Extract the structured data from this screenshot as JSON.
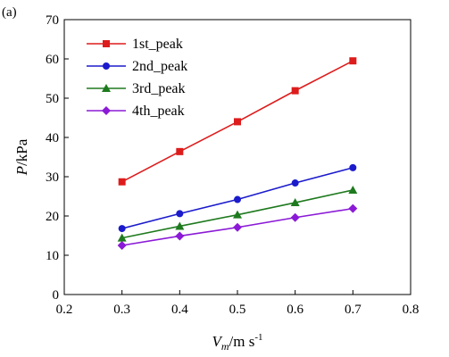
{
  "panel_label": "(a)",
  "chart_data": {
    "type": "line",
    "x": [
      0.3,
      0.4,
      0.5,
      0.6,
      0.7
    ],
    "xlim": [
      0.2,
      0.8
    ],
    "ylim": [
      0,
      70
    ],
    "xticks": [
      "0.2",
      "0.3",
      "0.4",
      "0.5",
      "0.6",
      "0.7",
      "0.8"
    ],
    "yticks": [
      "0",
      "10",
      "20",
      "30",
      "40",
      "50",
      "60",
      "70"
    ],
    "ylabel": {
      "main": "P",
      "rest": "/kPa"
    },
    "xlabel": {
      "main": "V",
      "sub": "m",
      "rest": "/m s",
      "sup": "-1"
    },
    "legend_position": "top-left",
    "grid": false,
    "series": [
      {
        "name": "1st_peak",
        "color": "#dd1c1c",
        "marker": "square",
        "values": [
          28.7,
          36.4,
          44.0,
          51.9,
          59.5
        ]
      },
      {
        "name": "2nd_peak",
        "color": "#1b1bcc",
        "marker": "circle",
        "values": [
          16.8,
          20.6,
          24.2,
          28.4,
          32.3
        ]
      },
      {
        "name": "3rd_peak",
        "color": "#1e7a1e",
        "marker": "triangle",
        "values": [
          14.4,
          17.4,
          20.3,
          23.4,
          26.6
        ]
      },
      {
        "name": "4th_peak",
        "color": "#8b1ad6",
        "marker": "diamond",
        "values": [
          12.5,
          14.9,
          17.1,
          19.6,
          21.9
        ]
      }
    ]
  }
}
